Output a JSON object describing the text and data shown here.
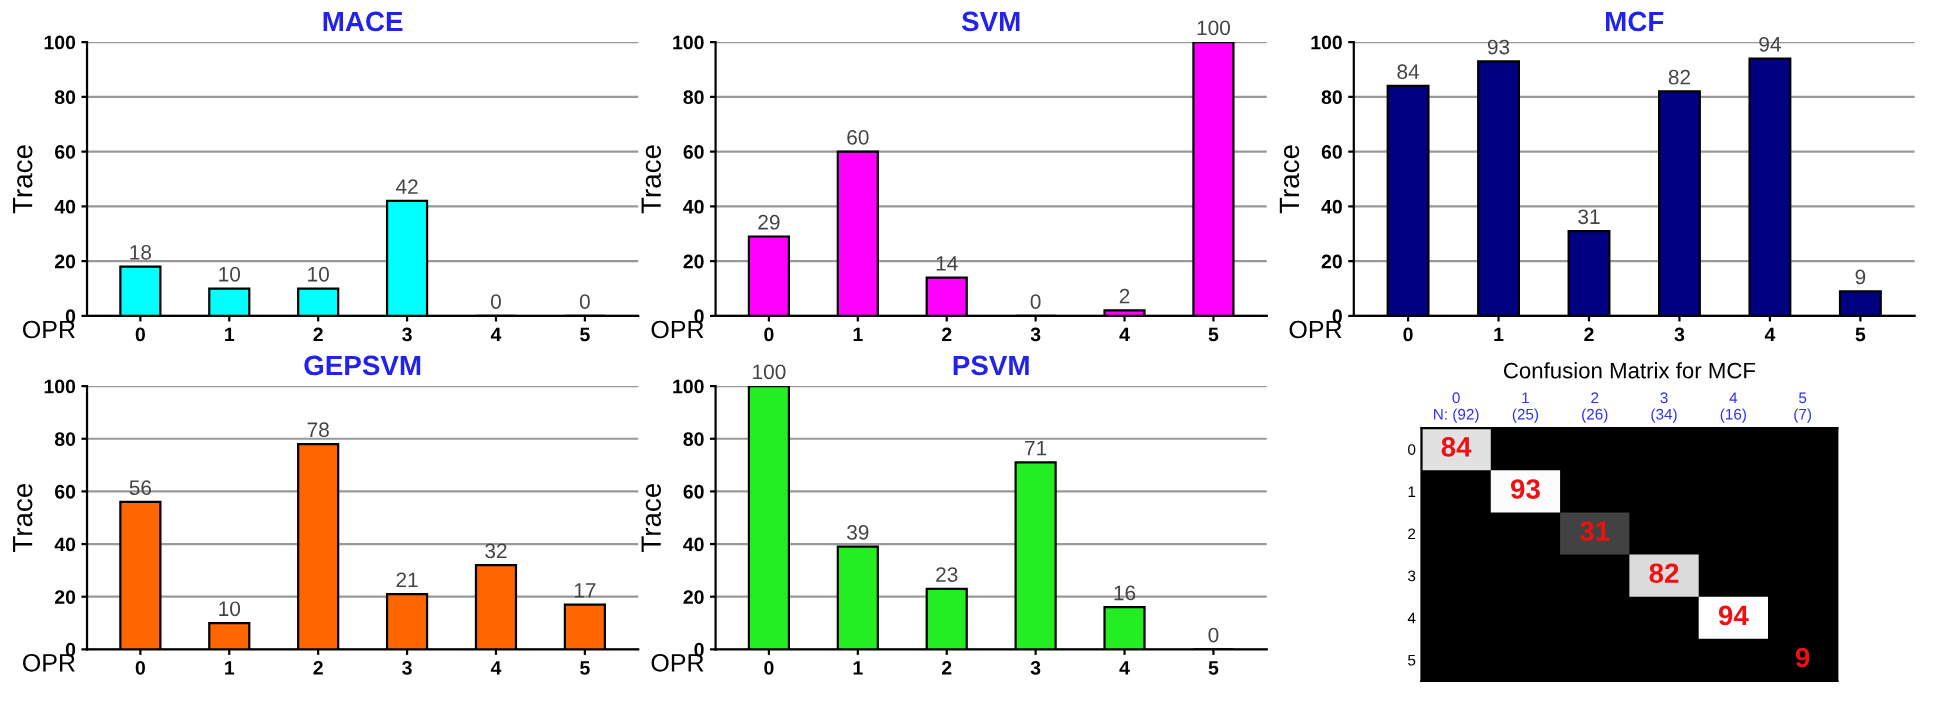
{
  "chart_data": [
    {
      "type": "bar",
      "title": "MACE",
      "xlabel": "OPR",
      "ylabel": "Trace",
      "categories": [
        "0",
        "1",
        "2",
        "3",
        "4",
        "5"
      ],
      "values": [
        18,
        10,
        10,
        42,
        0,
        0
      ],
      "color": "#00ffff",
      "ylim": [
        0,
        100
      ],
      "yticks": [
        0,
        20,
        40,
        60,
        80,
        100
      ],
      "grid": "y",
      "data_labels": true
    },
    {
      "type": "bar",
      "title": "SVM",
      "xlabel": "OPR",
      "ylabel": "Trace",
      "categories": [
        "0",
        "1",
        "2",
        "3",
        "4",
        "5"
      ],
      "values": [
        29,
        60,
        14,
        0,
        2,
        100
      ],
      "color": "#ff00ff",
      "ylim": [
        0,
        100
      ],
      "yticks": [
        0,
        20,
        40,
        60,
        80,
        100
      ],
      "grid": "y",
      "data_labels": true
    },
    {
      "type": "bar",
      "title": "MCF",
      "xlabel": "OPR",
      "ylabel": "Trace",
      "categories": [
        "0",
        "1",
        "2",
        "3",
        "4",
        "5"
      ],
      "values": [
        84,
        93,
        31,
        82,
        94,
        9
      ],
      "color": "#000080",
      "ylim": [
        0,
        100
      ],
      "yticks": [
        0,
        20,
        40,
        60,
        80,
        100
      ],
      "grid": "y",
      "data_labels": true
    },
    {
      "type": "bar",
      "title": "GEPSVM",
      "xlabel": "OPR",
      "ylabel": "Trace",
      "categories": [
        "0",
        "1",
        "2",
        "3",
        "4",
        "5"
      ],
      "values": [
        56,
        10,
        78,
        21,
        32,
        17
      ],
      "color": "#ff6600",
      "ylim": [
        0,
        100
      ],
      "yticks": [
        0,
        20,
        40,
        60,
        80,
        100
      ],
      "grid": "y",
      "data_labels": true
    },
    {
      "type": "bar",
      "title": "PSVM",
      "xlabel": "OPR",
      "ylabel": "Trace",
      "categories": [
        "0",
        "1",
        "2",
        "3",
        "4",
        "5"
      ],
      "values": [
        100,
        39,
        23,
        71,
        16,
        0
      ],
      "color": "#22ee22",
      "ylim": [
        0,
        100
      ],
      "yticks": [
        0,
        20,
        40,
        60,
        80,
        100
      ],
      "grid": "y",
      "data_labels": true
    },
    {
      "type": "heatmap",
      "title": "Confusion Matrix for MCF",
      "categories": [
        "0\nN: (92)",
        "1\n(25)",
        "2\n(26)",
        "3\n(34)",
        "4\n(16)",
        "5\n(7)"
      ],
      "y_categories": [
        "0",
        "1",
        "2",
        "3",
        "4",
        "5"
      ],
      "cells": [
        [
          84,
          null,
          null,
          null,
          null,
          null
        ],
        [
          null,
          93,
          null,
          null,
          null,
          null
        ],
        [
          null,
          null,
          31,
          null,
          null,
          null
        ],
        [
          null,
          null,
          null,
          82,
          null,
          null
        ],
        [
          null,
          null,
          null,
          null,
          94,
          null
        ],
        [
          null,
          null,
          null,
          null,
          null,
          9
        ]
      ],
      "data_labels": true
    }
  ]
}
